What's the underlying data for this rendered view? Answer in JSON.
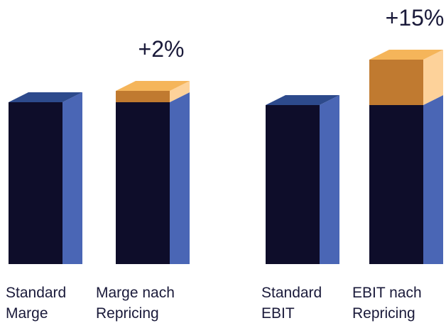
{
  "chart_data": {
    "type": "bar3d-stacked",
    "categories": [
      [
        "Standard",
        "Marge"
      ],
      [
        "Marge nach",
        "Repricing"
      ],
      [
        "Standard",
        "EBIT"
      ],
      [
        "EBIT nach",
        "Repricing"
      ]
    ],
    "ylim": [
      0,
      300
    ],
    "series": [
      {
        "color": "#0e0d2a",
        "side_color": "#4a66b5",
        "top_color": "#2d4a8c",
        "values": [
          228,
          228,
          224,
          224
        ]
      },
      {
        "color": "#c07a30",
        "side_color": "#fdd29a",
        "top_color": "#f5b55a",
        "values": [
          0,
          16,
          0,
          64
        ]
      }
    ],
    "annotations": [
      {
        "text": "+2%",
        "category": 1
      },
      {
        "text": "+15%",
        "category": 3
      }
    ]
  }
}
